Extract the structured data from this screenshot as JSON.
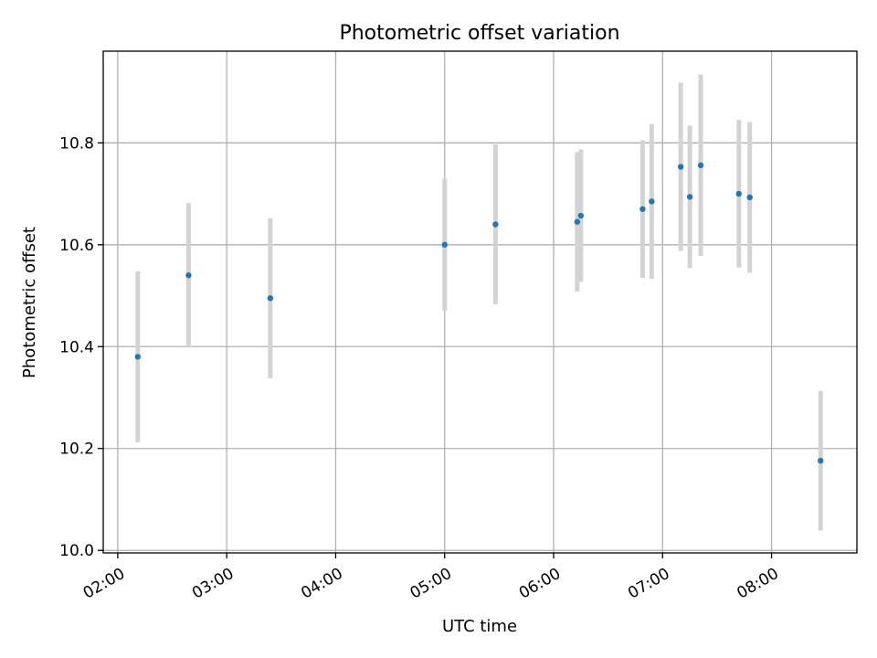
{
  "chart_data": {
    "type": "scatter",
    "title": "Photometric offset variation",
    "xlabel": "UTC time",
    "ylabel": "Photometric offset",
    "xlim": [
      "01:52",
      "08:47"
    ],
    "ylim": [
      9.995,
      10.98
    ],
    "x_ticks": [
      "02:00",
      "03:00",
      "04:00",
      "05:00",
      "06:00",
      "07:00",
      "08:00"
    ],
    "y_ticks": [
      "10.0",
      "10.2",
      "10.4",
      "10.6",
      "10.8"
    ],
    "grid": true,
    "colors": {
      "point": "#1f77b4",
      "errorbar": "#d3d3d3"
    },
    "points": [
      {
        "x": "02:11",
        "y": 10.38,
        "yerr": 0.168
      },
      {
        "x": "02:39",
        "y": 10.54,
        "yerr": 0.142
      },
      {
        "x": "03:24",
        "y": 10.495,
        "yerr": 0.157
      },
      {
        "x": "05:00",
        "y": 10.6,
        "yerr": 0.13
      },
      {
        "x": "05:28",
        "y": 10.64,
        "yerr": 0.157
      },
      {
        "x": "06:13",
        "y": 10.645,
        "yerr": 0.137
      },
      {
        "x": "06:15",
        "y": 10.657,
        "yerr": 0.13
      },
      {
        "x": "06:49",
        "y": 10.67,
        "yerr": 0.135
      },
      {
        "x": "06:54",
        "y": 10.685,
        "yerr": 0.152
      },
      {
        "x": "07:10",
        "y": 10.753,
        "yerr": 0.165
      },
      {
        "x": "07:15",
        "y": 10.694,
        "yerr": 0.14
      },
      {
        "x": "07:21",
        "y": 10.756,
        "yerr": 0.178
      },
      {
        "x": "07:42",
        "y": 10.7,
        "yerr": 0.145
      },
      {
        "x": "07:48",
        "y": 10.693,
        "yerr": 0.148
      },
      {
        "x": "08:27",
        "y": 10.176,
        "yerr": 0.137
      }
    ]
  }
}
